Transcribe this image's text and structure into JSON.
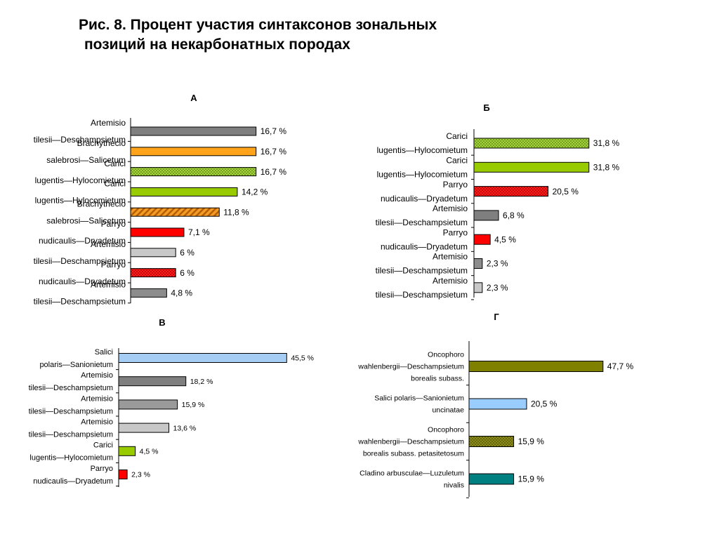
{
  "slide": {
    "title_line1": "Рис. 8. Процент участия синтаксонов зональных",
    "title_line2": "позиций на некарбонатных породах"
  },
  "chart_data": [
    {
      "type": "bar",
      "panel": "А",
      "orientation": "horizontal",
      "xlim": [
        0,
        100
      ],
      "categories": [
        [
          "Artemisio",
          "tilesii—Deschampsietum"
        ],
        [
          "Brachythecio",
          "salebrosi—Salicetum"
        ],
        [
          "Carici",
          "lugentis—Hylocomietum"
        ],
        [
          "Carici",
          "lugentis—Hylocomietum"
        ],
        [
          "Brachythecio",
          "salebrosi—Salicetum"
        ],
        [
          "Parryo",
          "nudicaulis—Dryadetum"
        ],
        [
          "Artemisio",
          "tilesii—Deschampsietum"
        ],
        [
          "Parryo",
          "nudicaulis—Dryadetum"
        ],
        [
          "Artemisio",
          "tilesii—Deschampsietum"
        ]
      ],
      "values": [
        16.7,
        16.7,
        16.7,
        14.2,
        11.8,
        7.1,
        6,
        6,
        4.8
      ],
      "value_labels": [
        "16,7 %",
        "16,7 %",
        "16,7 %",
        "14,2 %",
        "11,8 %",
        "7,1 %",
        "6 %",
        "6 %",
        "4,8 %"
      ],
      "colors": [
        "#7f7f7f",
        "#ffa31a",
        "#99cc33",
        "#99cc00",
        "#ee8a1e",
        "#ff0000",
        "#c8c8c8",
        "#ff0000",
        "#8c8c8c"
      ],
      "patterns": [
        "solid",
        "solid",
        "dots-green",
        "solid",
        "hatch-orange",
        "solid",
        "solid",
        "dots-red",
        "solid"
      ]
    },
    {
      "type": "bar",
      "panel": "Б",
      "orientation": "horizontal",
      "xlim": [
        0,
        100
      ],
      "categories": [
        [
          "Carici",
          "lugentis—Hylocomietum"
        ],
        [
          "Carici",
          "lugentis—Hylocomietum"
        ],
        [
          "Parryo",
          "nudicaulis—Dryadetum"
        ],
        [
          "Artemisio",
          "tilesii—Deschampsietum"
        ],
        [
          "Parryo",
          "nudicaulis—Dryadetum"
        ],
        [
          "Artemisio",
          "tilesii—Deschampsietum"
        ],
        [
          "Artemisio",
          "tilesii—Deschampsietum"
        ]
      ],
      "values": [
        31.8,
        31.8,
        20.5,
        6.8,
        4.5,
        2.3,
        2.3
      ],
      "value_labels": [
        "31,8 %",
        "31,8 %",
        "20,5 %",
        "6,8 %",
        "4,5 %",
        "2,3 %",
        "2,3 %"
      ],
      "colors": [
        "#99cc33",
        "#99cc00",
        "#ff0000",
        "#7f7f7f",
        "#ff0000",
        "#8c8c8c",
        "#c8c8c8"
      ],
      "patterns": [
        "dots-green",
        "solid",
        "dots-red",
        "solid",
        "solid",
        "solid",
        "solid"
      ]
    },
    {
      "type": "bar",
      "panel": "В",
      "orientation": "horizontal",
      "xlim": [
        0,
        100
      ],
      "categories": [
        [
          "Salici",
          "polaris—Sanionietum"
        ],
        [
          "Artemisio",
          "tilesii—Deschampsietum"
        ],
        [
          "Artemisio",
          "tilesii—Deschampsietum"
        ],
        [
          "Artemisio",
          "tilesii—Deschampsietum"
        ],
        [
          "Carici",
          "lugentis—Hylocomietum"
        ],
        [
          "Parryo",
          "nudicaulis—Dryadetum"
        ]
      ],
      "values": [
        45.5,
        18.2,
        15.9,
        13.6,
        4.5,
        2.3
      ],
      "value_labels": [
        "45,5 %",
        "18,2 %",
        "15,9 %",
        "13,6 %",
        "4,5 %",
        "2,3 %"
      ],
      "colors": [
        "#a6cef5",
        "#7f7f7f",
        "#9a9a9a",
        "#c8c8c8",
        "#99cc00",
        "#ff0000"
      ],
      "patterns": [
        "solid",
        "solid",
        "solid",
        "solid",
        "solid",
        "solid"
      ]
    },
    {
      "type": "bar",
      "panel": "Г",
      "orientation": "horizontal",
      "xlim": [
        0,
        100
      ],
      "categories": [
        [
          "Oncophoro",
          "wahlenbergii—Deschampsietum",
          "borealis subass."
        ],
        [
          "Salici polaris—Sanionietum",
          "uncinatae"
        ],
        [
          "Oncophoro",
          "wahlenbergii—Deschampsietum",
          "borealis subass. petasitetosum"
        ],
        [
          "Cladino arbusculae—Luzuletum",
          "nivalis"
        ]
      ],
      "values": [
        47.7,
        20.5,
        15.9,
        15.9
      ],
      "value_labels": [
        "47,7 %",
        "20,5 %",
        "15,9 %",
        "15,9 %"
      ],
      "colors": [
        "#808000",
        "#99ccff",
        "#808000",
        "#008080"
      ],
      "patterns": [
        "solid",
        "solid",
        "dots-olive",
        "solid"
      ]
    }
  ]
}
